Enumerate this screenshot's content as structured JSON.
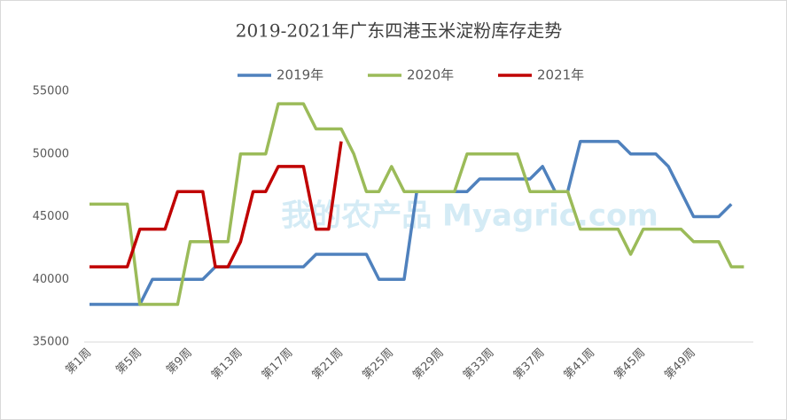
{
  "chart_data": {
    "type": "line",
    "title": "2019-2021年广东四港玉米淀粉库存走势",
    "watermark": "我的农产品 Myagric.com",
    "categories": [
      "第1周",
      null,
      null,
      null,
      "第5周",
      null,
      null,
      null,
      "第9周",
      null,
      null,
      null,
      "第13周",
      null,
      null,
      null,
      "第17周",
      null,
      null,
      null,
      "第21周",
      null,
      null,
      null,
      "第25周",
      null,
      null,
      null,
      "第29周",
      null,
      null,
      null,
      "第33周",
      null,
      null,
      null,
      "第37周",
      null,
      null,
      null,
      "第41周",
      null,
      null,
      null,
      "第45周",
      null,
      null,
      null,
      "第49周",
      null,
      null,
      null,
      null
    ],
    "series": [
      {
        "name": "2019年",
        "color": "#4f81bd",
        "values": [
          38000,
          38000,
          38000,
          38000,
          38000,
          40000,
          40000,
          40000,
          40000,
          40000,
          41000,
          41000,
          41000,
          41000,
          41000,
          41000,
          41000,
          41000,
          42000,
          42000,
          42000,
          42000,
          42000,
          40000,
          40000,
          40000,
          47000,
          47000,
          47000,
          47000,
          47000,
          48000,
          48000,
          48000,
          48000,
          48000,
          49000,
          47000,
          47000,
          51000,
          51000,
          51000,
          51000,
          50000,
          50000,
          50000,
          49000,
          47000,
          45000,
          45000,
          45000,
          46000,
          null
        ]
      },
      {
        "name": "2020年",
        "color": "#9bbb59",
        "values": [
          46000,
          46000,
          46000,
          46000,
          38000,
          38000,
          38000,
          38000,
          43000,
          43000,
          43000,
          43000,
          50000,
          50000,
          50000,
          54000,
          54000,
          54000,
          52000,
          52000,
          52000,
          50000,
          47000,
          47000,
          49000,
          47000,
          47000,
          47000,
          47000,
          47000,
          50000,
          50000,
          50000,
          50000,
          50000,
          47000,
          47000,
          47000,
          47000,
          44000,
          44000,
          44000,
          44000,
          42000,
          44000,
          44000,
          44000,
          44000,
          43000,
          43000,
          43000,
          41000,
          41000
        ]
      },
      {
        "name": "2021年",
        "color": "#c00000",
        "values": [
          41000,
          41000,
          41000,
          41000,
          44000,
          44000,
          44000,
          47000,
          47000,
          47000,
          41000,
          41000,
          43000,
          47000,
          47000,
          49000,
          49000,
          49000,
          44000,
          44000,
          51000,
          null,
          null,
          null,
          null,
          null,
          null,
          null,
          null,
          null,
          null,
          null,
          null,
          null,
          null,
          null,
          null,
          null,
          null,
          null,
          null,
          null,
          null,
          null,
          null,
          null,
          null,
          null,
          null,
          null,
          null,
          null,
          null
        ]
      }
    ],
    "ylim": [
      35000,
      55000
    ],
    "yticks": [
      35000,
      40000,
      45000,
      50000,
      55000
    ],
    "grid": false,
    "legend": "top"
  }
}
